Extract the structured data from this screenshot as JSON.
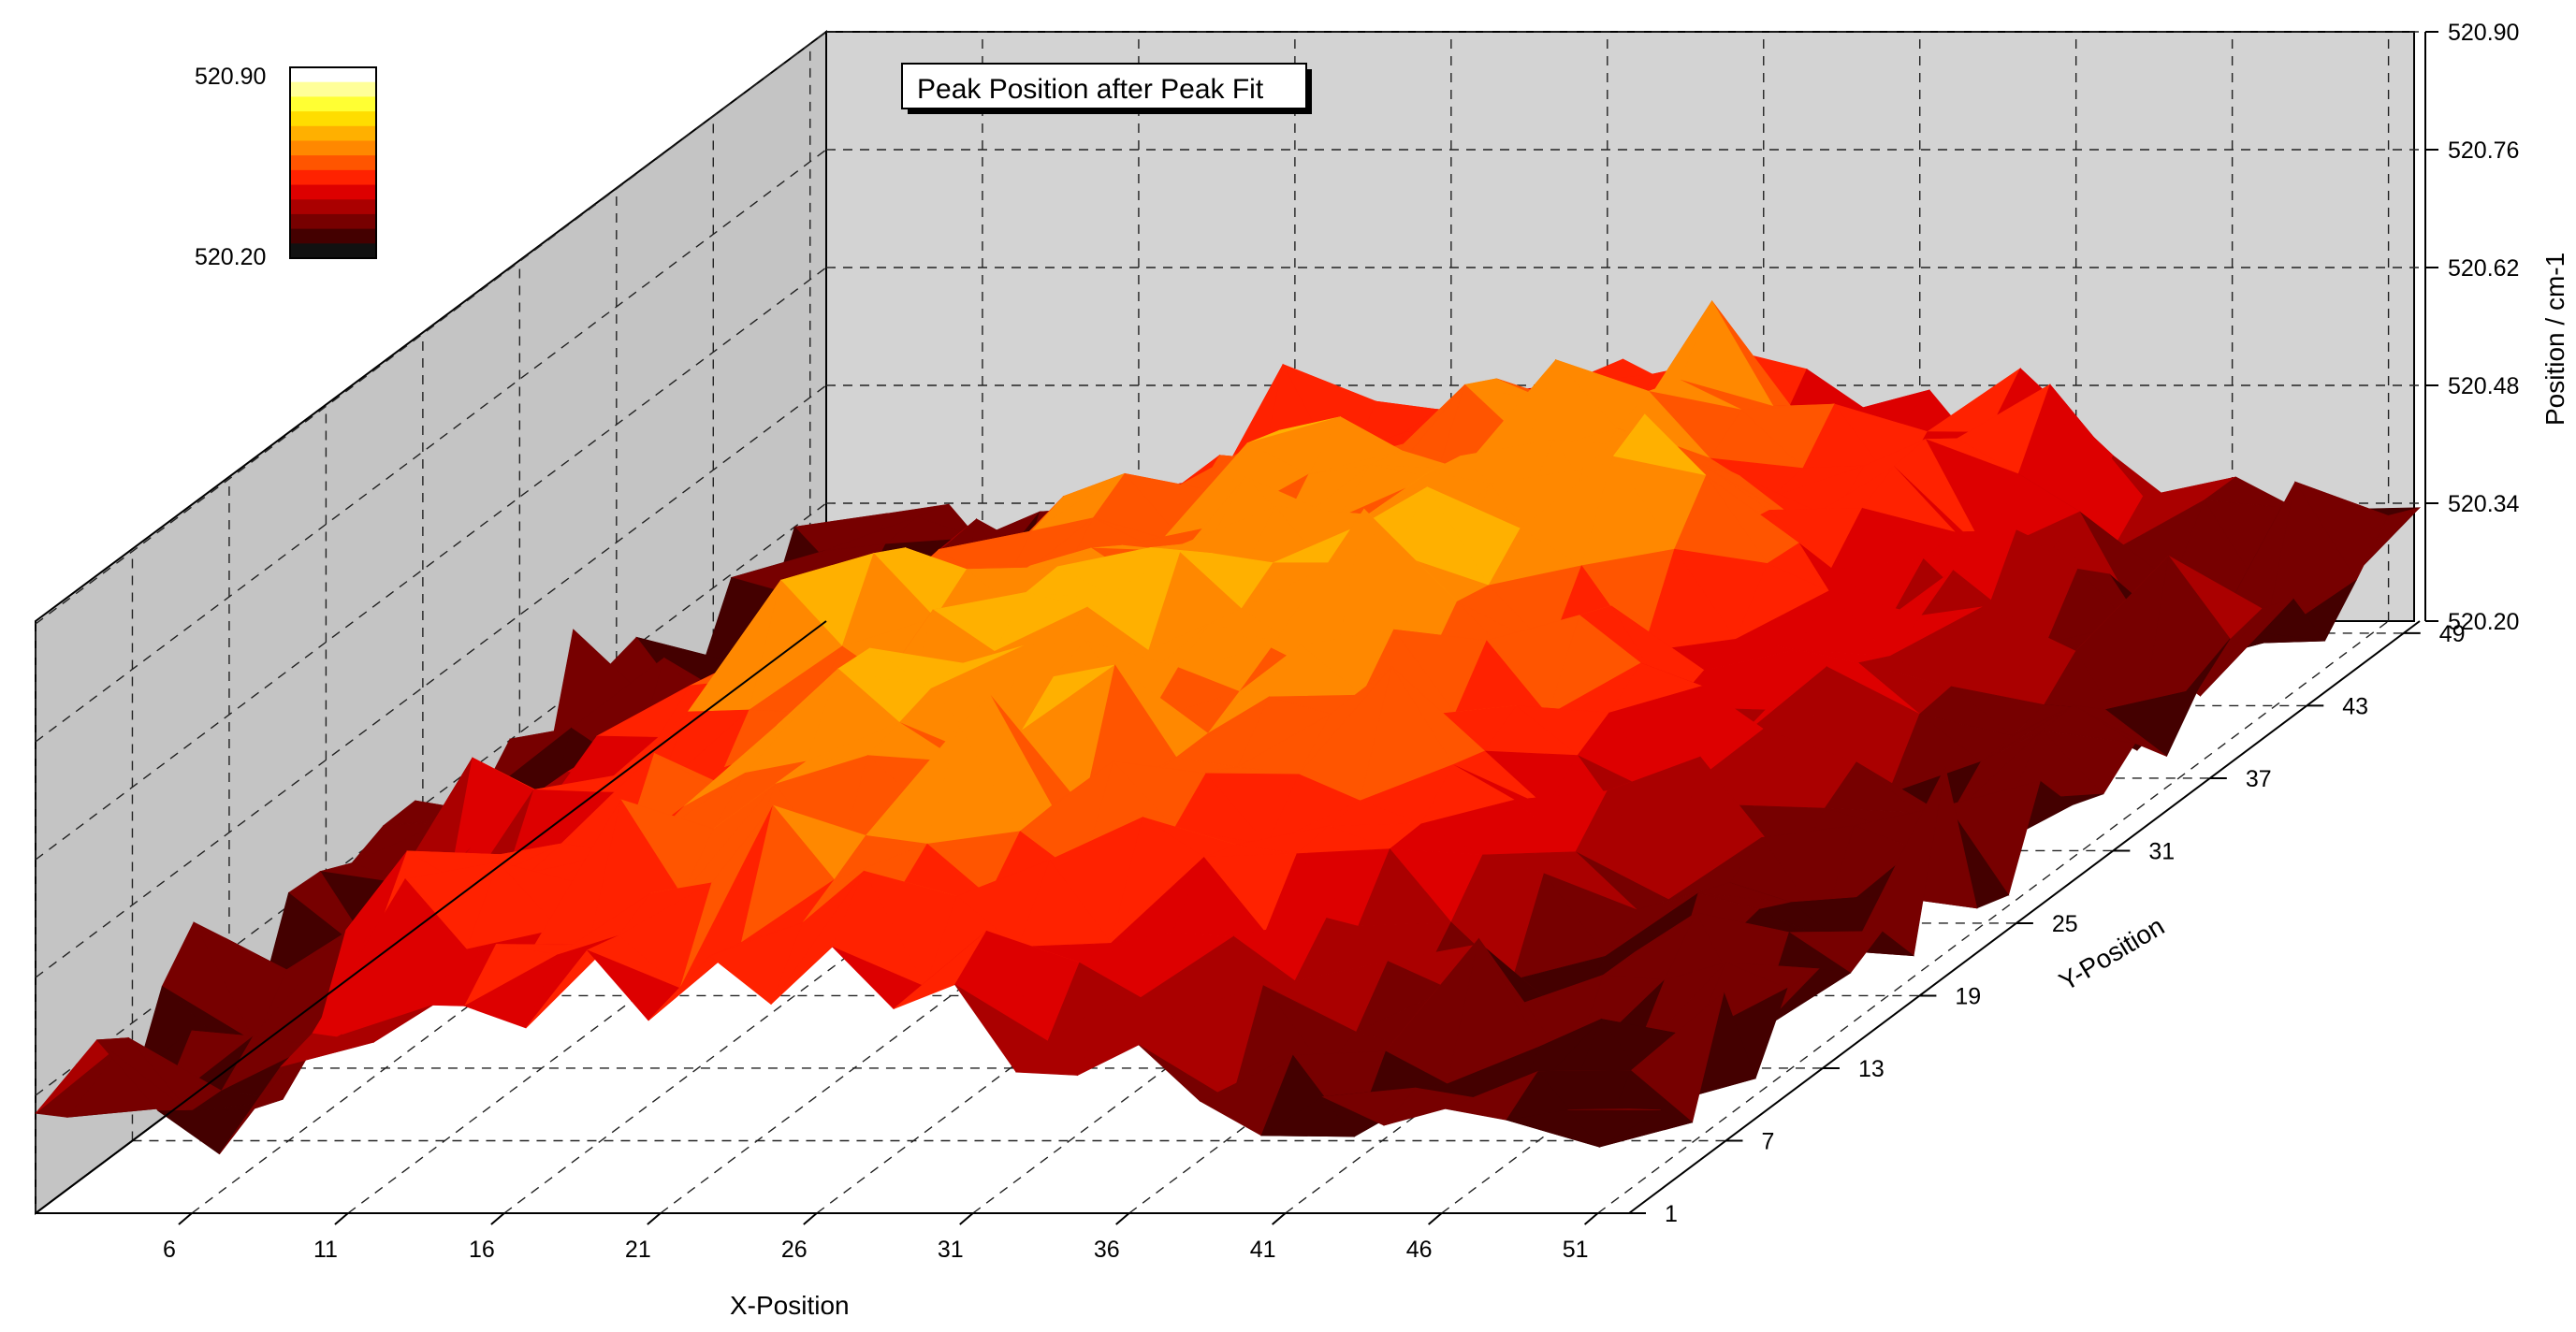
{
  "chart_data": {
    "type": "surface-3d",
    "title": "Peak Position after Peak Fit",
    "xlabel": "X-Position",
    "ylabel": "Y-Position",
    "zlabel": "Position / cm-1",
    "x_ticks": [
      "6",
      "11",
      "16",
      "21",
      "26",
      "31",
      "36",
      "41",
      "46",
      "51"
    ],
    "y_ticks": [
      "1",
      "7",
      "13",
      "19",
      "25",
      "31",
      "37",
      "43",
      "49"
    ],
    "z_ticks": [
      "520.20",
      "520.34",
      "520.48",
      "520.62",
      "520.76",
      "520.90"
    ],
    "xlim": [
      1,
      52
    ],
    "ylim": [
      1,
      50
    ],
    "zlim": [
      520.2,
      520.9
    ],
    "colormap": {
      "name": "hot",
      "max_label": "520.90",
      "min_label": "520.20",
      "colors": [
        "#ffffff",
        "#ffff99",
        "#ffff33",
        "#ffdd00",
        "#ffb000",
        "#ff8800",
        "#ff5500",
        "#ff2200",
        "#dd0000",
        "#aa0000",
        "#770000",
        "#440000",
        "#111111"
      ]
    },
    "surface_summary": {
      "description_range": [
        520.2,
        520.9
      ],
      "peak_region_value": 520.62,
      "edge_region_value": 520.3
    },
    "grid": true,
    "colors": {
      "wall": "#d3d3d3",
      "floor_grid": "#222222"
    }
  }
}
